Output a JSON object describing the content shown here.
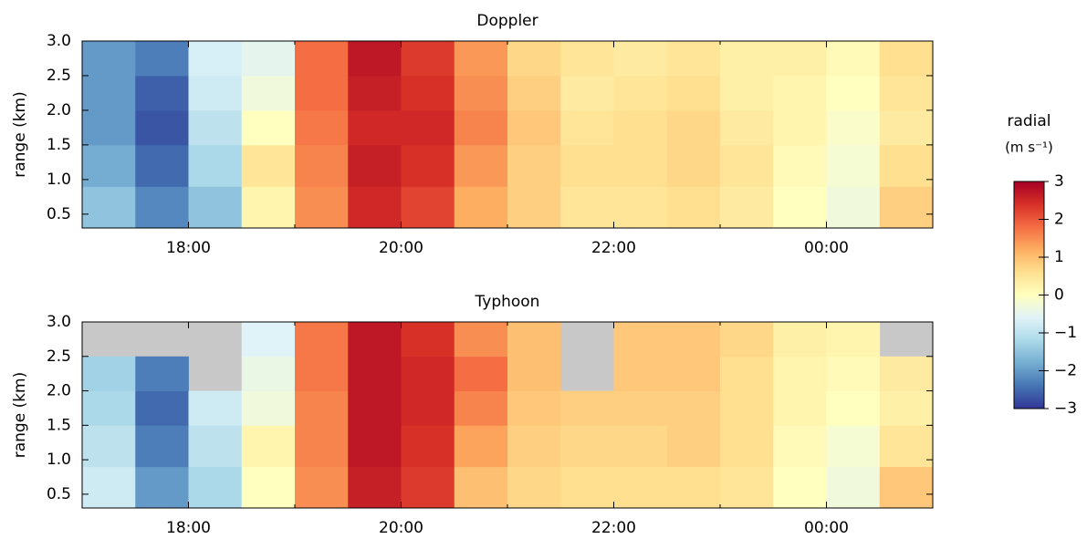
{
  "chart_data": [
    {
      "type": "heatmap",
      "title": "Doppler",
      "ylabel": "range (km)",
      "xlim": [
        17,
        25
      ],
      "xticks": [
        {
          "value": 18,
          "label": "18:00"
        },
        {
          "value": 20,
          "label": "20:00"
        },
        {
          "value": 22,
          "label": "22:00"
        },
        {
          "value": 24,
          "label": "00:00"
        }
      ],
      "xminorticks": [
        19,
        21,
        23
      ],
      "ylim": [
        0.3,
        3.0
      ],
      "yticks": [
        {
          "value": 0.5,
          "label": "0.5"
        },
        {
          "value": 1.0,
          "label": "1.0"
        },
        {
          "value": 1.5,
          "label": "1.5"
        },
        {
          "value": 2.0,
          "label": "2.0"
        },
        {
          "value": 2.5,
          "label": "2.5"
        },
        {
          "value": 3.0,
          "label": "3.0"
        }
      ],
      "x_edges": [
        17,
        17.5,
        18,
        18.5,
        19,
        19.5,
        20,
        20.5,
        21,
        21.5,
        22,
        22.5,
        23,
        23.5,
        24,
        24.5,
        25
      ],
      "y_edges": [
        0.3,
        0.9,
        1.5,
        2.0,
        2.5,
        3.0
      ],
      "z": [
        [
          -1.5,
          -2.2,
          -1.5,
          0.2,
          1.5,
          2.5,
          2.2,
          1.2,
          0.8,
          0.5,
          0.5,
          0.6,
          0.4,
          0,
          -0.3,
          0.8
        ],
        [
          -1.8,
          -2.5,
          -1.2,
          0.5,
          1.6,
          2.6,
          2.4,
          1.4,
          0.8,
          0.6,
          0.6,
          0.7,
          0.5,
          0.1,
          -0.2,
          0.6
        ],
        [
          -2,
          -2.7,
          -1,
          0,
          1.7,
          2.5,
          2.5,
          1.6,
          0.9,
          0.5,
          0.6,
          0.7,
          0.4,
          0.2,
          -0.1,
          0.4
        ],
        [
          -2,
          -2.6,
          -0.8,
          -0.3,
          1.8,
          2.6,
          2.4,
          1.5,
          0.8,
          0.4,
          0.5,
          0.6,
          0.3,
          0.2,
          0,
          0.5
        ],
        [
          -2,
          -2.3,
          -0.7,
          -0.5,
          1.8,
          2.7,
          2.3,
          1.4,
          0.7,
          0.5,
          0.4,
          0.5,
          0.3,
          0.3,
          0.1,
          0.6
        ]
      ]
    },
    {
      "type": "heatmap",
      "title": "Typhoon",
      "ylabel": "range (km)",
      "xlim": [
        17,
        25
      ],
      "xticks": [
        {
          "value": 18,
          "label": "18:00"
        },
        {
          "value": 20,
          "label": "20:00"
        },
        {
          "value": 22,
          "label": "22:00"
        },
        {
          "value": 24,
          "label": "00:00"
        }
      ],
      "xminorticks": [
        19,
        21,
        23
      ],
      "ylim": [
        0.3,
        3.0
      ],
      "yticks": [
        {
          "value": 0.5,
          "label": "0.5"
        },
        {
          "value": 1.0,
          "label": "1.0"
        },
        {
          "value": 1.5,
          "label": "1.5"
        },
        {
          "value": 2.0,
          "label": "2.0"
        },
        {
          "value": 2.5,
          "label": "2.5"
        },
        {
          "value": 3.0,
          "label": "3.0"
        }
      ],
      "x_edges": [
        17,
        17.5,
        18,
        18.5,
        19,
        19.5,
        20,
        20.5,
        21,
        21.5,
        22,
        22.5,
        23,
        23.5,
        24,
        24.5,
        25
      ],
      "y_edges": [
        0.3,
        0.9,
        1.5,
        2.0,
        2.5,
        3.0
      ],
      "z": [
        [
          -0.8,
          -2,
          -1.2,
          0,
          1.5,
          2.6,
          2.3,
          1.0,
          0.7,
          0.6,
          0.6,
          0.6,
          0.5,
          0,
          -0.3,
          0.9
        ],
        [
          -1,
          -2.3,
          -1,
          0.2,
          1.6,
          2.7,
          2.4,
          1.3,
          0.8,
          0.7,
          0.7,
          0.8,
          0.6,
          0.1,
          -0.2,
          0.5
        ],
        [
          -1.2,
          -2.5,
          -0.8,
          -0.3,
          1.6,
          2.7,
          2.5,
          1.6,
          0.9,
          0.8,
          0.8,
          0.8,
          0.6,
          0.2,
          0,
          0.3
        ],
        [
          -1.3,
          -2.3,
          null,
          -0.4,
          1.7,
          2.7,
          2.5,
          1.8,
          1.0,
          null,
          0.9,
          0.9,
          0.6,
          0.2,
          0.1,
          0.4
        ],
        [
          null,
          null,
          null,
          -0.6,
          1.7,
          2.7,
          2.4,
          1.5,
          1.0,
          null,
          0.9,
          0.9,
          0.7,
          0.3,
          0.2,
          null
        ]
      ]
    }
  ],
  "colorbar": {
    "label": "radial",
    "unit": "(m s⁻¹)",
    "lim": [
      -3,
      3
    ],
    "ticks": [
      {
        "value": -3,
        "label": "−3"
      },
      {
        "value": -2,
        "label": "−2"
      },
      {
        "value": -1,
        "label": "−1"
      },
      0,
      1,
      2,
      3
    ],
    "colors": [
      "#313695",
      "#4575b4",
      "#74add1",
      "#abd9e9",
      "#e0f3f8",
      "#ffffbf",
      "#fee090",
      "#fdae61",
      "#f46d43",
      "#d73027",
      "#a50026"
    ],
    "missing_color": "#c8c8c8"
  }
}
